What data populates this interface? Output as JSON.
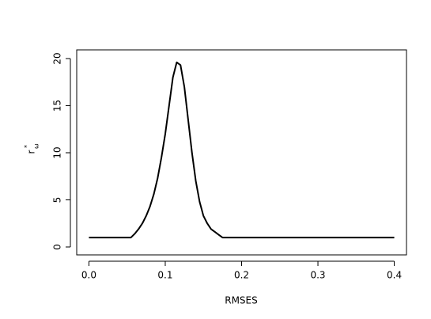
{
  "chart_data": {
    "type": "line",
    "x_label": "RMSES",
    "y_label": "r",
    "y_label_sup": "*",
    "y_label_sub": "ω",
    "x": [
      0,
      0.055,
      0.06,
      0.065,
      0.07,
      0.075,
      0.08,
      0.085,
      0.09,
      0.095,
      0.1,
      0.105,
      0.11,
      0.115,
      0.12,
      0.125,
      0.13,
      0.135,
      0.14,
      0.145,
      0.15,
      0.155,
      0.16,
      0.165,
      0.17,
      0.175,
      0.4
    ],
    "series": [
      {
        "color": "#000000",
        "values": [
          1,
          1,
          1.4,
          1.9,
          2.5,
          3.3,
          4.3,
          5.6,
          7.3,
          9.5,
          12.0,
          15.0,
          18.0,
          19.6,
          19.3,
          17.0,
          13.5,
          10.0,
          7.0,
          4.8,
          3.3,
          2.5,
          1.9,
          1.6,
          1.3,
          1,
          1
        ]
      }
    ],
    "xlim": [
      -0.016,
      0.416
    ],
    "xticks": [
      {
        "value": 0,
        "label": "0.0"
      },
      0.1,
      0.2,
      0.3,
      0.4
    ],
    "ylim": [
      -0.84,
      20.92
    ],
    "yticks": [
      0,
      5,
      10,
      15,
      20
    ]
  }
}
